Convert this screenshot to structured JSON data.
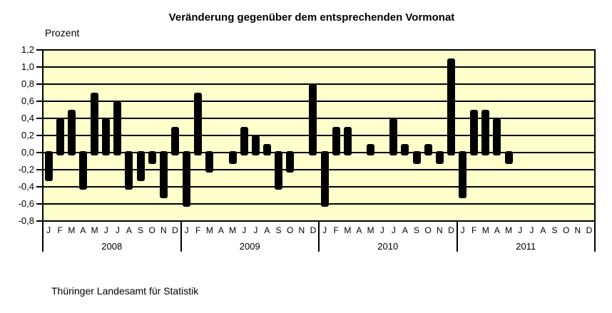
{
  "page": {
    "footer": "Thüringer Landesamt für Statistik"
  },
  "colors": {
    "page_background": "#FFFFFF",
    "plot_background": "#FFFFCC",
    "bar": "#000000",
    "grid": "#000000",
    "text": "#000000"
  },
  "chart_data": {
    "type": "bar",
    "title": "Veränderung gegenüber dem entsprechenden Vormonat",
    "ylabel": "Prozent",
    "xlabel": "",
    "ylim": [
      -0.8,
      1.2
    ],
    "ytick_step": 0.2,
    "ytick_labels": [
      "1,2",
      "1,0",
      "0,8",
      "0,6",
      "0,4",
      "0,2",
      "0,0",
      "-0,2",
      "-0,4",
      "-0,6",
      "-0,8"
    ],
    "grid": true,
    "legend": false,
    "month_labels": [
      "J",
      "F",
      "M",
      "A",
      "M",
      "J",
      "J",
      "A",
      "S",
      "O",
      "N",
      "D"
    ],
    "unit": "Prozent",
    "years": [
      {
        "year": "2008",
        "values": [
          -0.3,
          0.4,
          0.5,
          -0.4,
          0.7,
          0.4,
          0.6,
          -0.4,
          -0.3,
          -0.1,
          -0.5,
          0.3
        ]
      },
      {
        "year": "2009",
        "values": [
          -0.6,
          0.7,
          -0.2,
          0.0,
          -0.1,
          0.3,
          0.2,
          0.1,
          -0.4,
          -0.2,
          0.0,
          0.8
        ]
      },
      {
        "year": "2010",
        "values": [
          -0.6,
          0.3,
          0.3,
          0.0,
          0.1,
          0.0,
          0.4,
          0.1,
          -0.1,
          0.1,
          -0.1,
          1.1
        ]
      },
      {
        "year": "2011",
        "values": [
          -0.5,
          0.5,
          0.5,
          0.4,
          -0.1,
          null,
          null,
          null,
          null,
          null,
          null,
          null
        ]
      }
    ]
  }
}
